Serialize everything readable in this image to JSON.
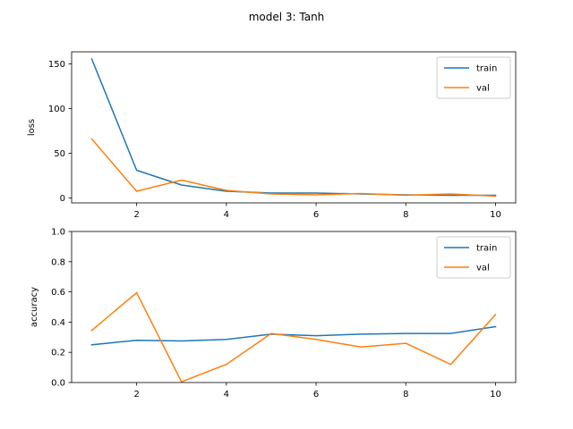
{
  "figure": {
    "suptitle": "model 3: Tanh"
  },
  "chart_data": [
    {
      "type": "line",
      "title": "",
      "xlabel": "",
      "ylabel": "loss",
      "x": [
        1,
        2,
        3,
        4,
        5,
        6,
        7,
        8,
        9,
        10
      ],
      "xticks": [
        2,
        4,
        6,
        8,
        10
      ],
      "xlim": [
        0.55,
        10.45
      ],
      "yticks": [
        0,
        50,
        100,
        150
      ],
      "ylim": [
        -5.5,
        163.5
      ],
      "grid": false,
      "legend_position": "top-right",
      "series": [
        {
          "name": "train",
          "color": "#1f77b4",
          "values": [
            155.5,
            31,
            14.5,
            7.5,
            5.5,
            5.5,
            4.5,
            3.5,
            3.0,
            3.0
          ]
        },
        {
          "name": "val",
          "color": "#ff7f0e",
          "values": [
            66,
            7.5,
            20,
            8.5,
            4.5,
            3.5,
            5.0,
            3.0,
            4.5,
            2.0
          ]
        }
      ]
    },
    {
      "type": "line",
      "title": "",
      "xlabel": "",
      "ylabel": "accuracy",
      "x": [
        1,
        2,
        3,
        4,
        5,
        6,
        7,
        8,
        9,
        10
      ],
      "xticks": [
        2,
        4,
        6,
        8,
        10
      ],
      "xlim": [
        0.55,
        10.45
      ],
      "yticks": [
        0.0,
        0.2,
        0.4,
        0.6,
        0.8,
        1.0
      ],
      "ytick_labels": [
        "0.0",
        "0.2",
        "0.4",
        "0.6",
        "0.8",
        "1.0"
      ],
      "ylim": [
        0,
        1
      ],
      "grid": false,
      "legend_position": "top-right",
      "series": [
        {
          "name": "train",
          "color": "#1f77b4",
          "values": [
            0.25,
            0.28,
            0.275,
            0.285,
            0.32,
            0.31,
            0.32,
            0.325,
            0.325,
            0.37
          ]
        },
        {
          "name": "val",
          "color": "#ff7f0e",
          "values": [
            0.345,
            0.595,
            0.005,
            0.12,
            0.325,
            0.285,
            0.235,
            0.26,
            0.12,
            0.45
          ]
        }
      ]
    }
  ]
}
